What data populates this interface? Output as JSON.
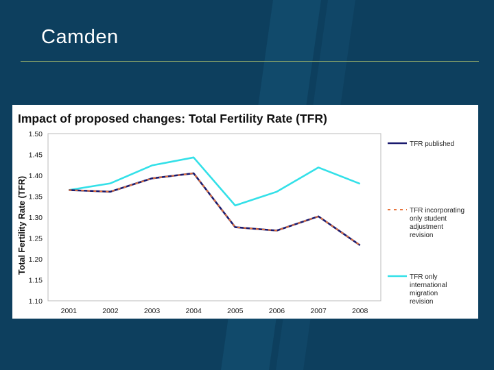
{
  "slide": {
    "title": "Camden"
  },
  "colors": {
    "background": "#0d3f5e",
    "rule": "#8fa86a"
  },
  "chart_data": {
    "type": "line",
    "title": "Impact of proposed changes: Total Fertility Rate (TFR)",
    "xlabel": "",
    "ylabel": "Total Fertility Rate (TFR)",
    "categories": [
      "2001",
      "2002",
      "2003",
      "2004",
      "2005",
      "2006",
      "2007",
      "2008"
    ],
    "ylim": [
      1.1,
      1.5
    ],
    "yticks": [
      "1.50",
      "1.45",
      "1.40",
      "1.35",
      "1.30",
      "1.25",
      "1.20",
      "1.15",
      "1.10"
    ],
    "grid": false,
    "legend": "right",
    "series": [
      {
        "name": "TFR published",
        "color": "#1a1a6e",
        "dash": "solid",
        "values": [
          1.365,
          1.361,
          1.393,
          1.405,
          1.276,
          1.268,
          1.302,
          1.233
        ]
      },
      {
        "name": "TFR incorporating only student adjustment revision",
        "color": "#e8733a",
        "dash": "dashed",
        "values": [
          1.365,
          1.361,
          1.393,
          1.405,
          1.276,
          1.268,
          1.302,
          1.233
        ]
      },
      {
        "name": "TFR only international migration revision",
        "color": "#33e0e8",
        "dash": "solid",
        "values": [
          1.365,
          1.381,
          1.424,
          1.443,
          1.328,
          1.361,
          1.419,
          1.38
        ]
      }
    ]
  }
}
